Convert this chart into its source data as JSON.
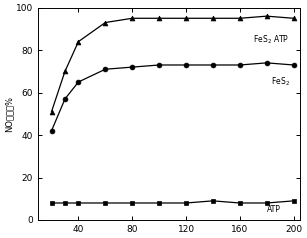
{
  "x": [
    20,
    30,
    40,
    60,
    80,
    100,
    120,
    140,
    160,
    180,
    200
  ],
  "fes2_atp": [
    51,
    70,
    84,
    93,
    95,
    95,
    95,
    95,
    95,
    96,
    95
  ],
  "fes2": [
    42,
    57,
    65,
    71,
    72,
    73,
    73,
    73,
    73,
    74,
    73
  ],
  "atp": [
    8,
    8,
    8,
    8,
    8,
    8,
    8,
    9,
    8,
    8,
    9
  ],
  "xlabel": "",
  "ylabel": "NO转化率%",
  "xlim": [
    10,
    205
  ],
  "ylim": [
    0,
    100
  ],
  "xticks": [
    40,
    80,
    120,
    160,
    200
  ],
  "yticks": [
    0,
    20,
    40,
    60,
    80,
    100
  ],
  "label_fes2_atp": "FeS$_2$ ATP",
  "label_fes2": "FeS$_2$",
  "label_atp": "ATP",
  "bg_color": "#ffffff",
  "line_color": "#000000",
  "figsize": [
    3.07,
    2.38
  ],
  "dpi": 100
}
